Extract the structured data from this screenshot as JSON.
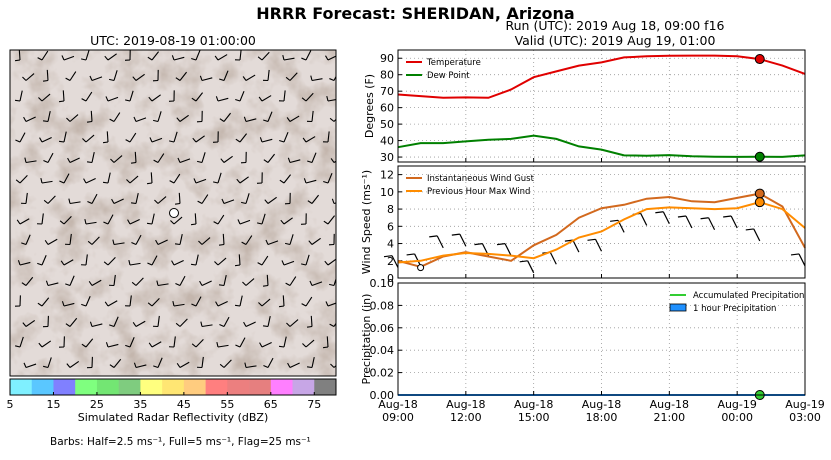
{
  "title": "HRRR Forecast: SHERIDAN, Arizona",
  "run_label": "Run (UTC): 2019 Aug 18, 09:00 f16",
  "valid_label": "Valid (UTC): 2019 Aug 19, 01:00",
  "map": {
    "title": "UTC: 2019-08-19 01:00:00",
    "colorbar_label": "Simulated Radar Reflectivity (dBZ)",
    "colorbar_ticks": [
      "5",
      "15",
      "25",
      "35",
      "45",
      "55",
      "65",
      "75"
    ],
    "colorbar_colors": [
      "#7ff0ff",
      "#5ac7ff",
      "#8080ff",
      "#7fff7f",
      "#73e673",
      "#7fcc7f",
      "#ffff7f",
      "#ffe673",
      "#ffcc7f",
      "#ff7f7f",
      "#ec7f7f",
      "#e67f7f",
      "#ff7fff",
      "#c7a6e6",
      "#808080"
    ],
    "barb_note": "Barbs: Half=2.5 ms⁻¹, Full=5 ms⁻¹, Flag=25 ms⁻¹"
  },
  "chart_data": [
    {
      "type": "line",
      "ylabel": "Degrees (F)",
      "ylim": [
        27,
        95
      ],
      "yticks": [
        "30",
        "40",
        "50",
        "60",
        "70",
        "80",
        "90"
      ],
      "x": [
        0,
        1,
        2,
        3,
        4,
        5,
        6,
        7,
        8,
        9,
        10,
        11,
        12,
        13,
        14,
        15,
        16,
        17,
        18
      ],
      "series": [
        {
          "name": "Temperature",
          "color": "#e00000",
          "values": [
            68,
            67,
            66,
            66.2,
            66,
            71,
            78.5,
            82,
            85.5,
            87.5,
            90.5,
            91.2,
            91.5,
            91.6,
            91.6,
            91.2,
            89.5,
            85.5,
            80.5
          ]
        },
        {
          "name": "Dew Point",
          "color": "#008000",
          "values": [
            36,
            38.5,
            38.5,
            39.5,
            40.5,
            41,
            43,
            41,
            36.5,
            34.5,
            31,
            30.8,
            31.2,
            30.5,
            30.2,
            30.1,
            30.2,
            30.1,
            31
          ]
        }
      ],
      "highlight_index": 16,
      "legend": "top-left",
      "grid": true
    },
    {
      "type": "line",
      "ylabel": "Wind Speed (ms⁻¹)",
      "ylim": [
        0,
        13
      ],
      "yticks": [
        "0",
        "2",
        "4",
        "6",
        "8",
        "10",
        "12"
      ],
      "x": [
        0,
        1,
        2,
        3,
        4,
        5,
        6,
        7,
        8,
        9,
        10,
        11,
        12,
        13,
        14,
        15,
        16,
        17,
        18
      ],
      "series": [
        {
          "name": "Instantaneous Wind Gust",
          "color": "#d2691e",
          "values": [
            2.0,
            1.3,
            2.5,
            3.0,
            2.5,
            2.0,
            3.8,
            5.0,
            7.0,
            8.1,
            8.5,
            9.2,
            9.4,
            8.9,
            8.8,
            9.3,
            9.8,
            8.3,
            3.5
          ]
        },
        {
          "name": "Previous Hour Max Wind",
          "color": "#ff8c00",
          "values": [
            1.8,
            2.0,
            2.6,
            2.9,
            2.8,
            2.6,
            2.3,
            3.3,
            4.7,
            5.4,
            6.8,
            8.0,
            8.2,
            8.1,
            8.0,
            8.1,
            8.8,
            8.0,
            5.8
          ]
        }
      ],
      "barb_y": [
        1.2,
        1.4,
        3.5,
        3.7,
        2.6,
        2.6,
        0.6,
        1.6,
        3.0,
        3.1,
        5.3,
        6.1,
        6.3,
        5.8,
        5.6,
        5.8,
        4.3,
        null,
        1.4
      ],
      "highlight_index": 16,
      "legend": "top-left",
      "grid": true
    },
    {
      "type": "line",
      "ylabel": "Precipitation (in)",
      "ylim": [
        0,
        0.1
      ],
      "yticks": [
        "0.00",
        "0.02",
        "0.04",
        "0.06",
        "0.08",
        "0.10"
      ],
      "xtick_labels": [
        [
          "Aug-18",
          "09:00"
        ],
        [
          "Aug-18",
          "12:00"
        ],
        [
          "Aug-18",
          "15:00"
        ],
        [
          "Aug-18",
          "18:00"
        ],
        [
          "Aug-18",
          "21:00"
        ],
        [
          "Aug-19",
          "00:00"
        ],
        [
          "Aug-19",
          "03:00"
        ]
      ],
      "xtick_positions": [
        0,
        3,
        6,
        9,
        12,
        15,
        18
      ],
      "series": [
        {
          "name": "Accumulated Precipitation",
          "color": "#32cd32",
          "values": [
            0,
            0,
            0,
            0,
            0,
            0,
            0,
            0,
            0,
            0,
            0,
            0,
            0,
            0,
            0,
            0,
            0,
            0,
            0
          ]
        },
        {
          "name": "1 hour Precipitation",
          "color": "#1e90ff",
          "values": [
            0,
            0,
            0,
            0,
            0,
            0,
            0,
            0,
            0,
            0,
            0,
            0,
            0,
            0,
            0,
            0,
            0,
            0,
            0
          ]
        }
      ],
      "highlight_index": 16,
      "legend": "top-right",
      "grid": true
    }
  ]
}
